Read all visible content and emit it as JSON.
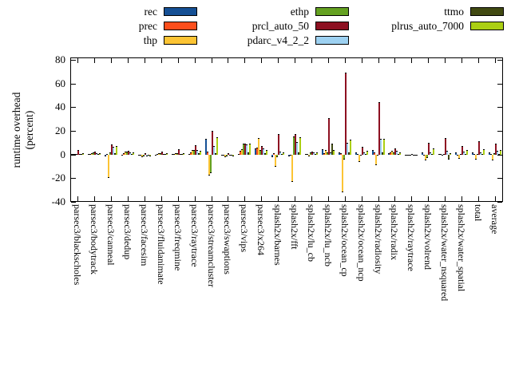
{
  "chart_data": {
    "type": "bar",
    "title": "",
    "xlabel": "",
    "ylabel": "runtime overhead (percent)",
    "ylabel_lines": [
      "runtime overhead",
      "(percent)"
    ],
    "ylim": [
      -40,
      80
    ],
    "yticks": [
      -40,
      -20,
      0,
      20,
      40,
      60,
      80
    ],
    "grid": false,
    "legend_position": "top, 3 columns, boxed swatches",
    "categories": [
      "parsec3/blackscholes",
      "parsec3/bodytrack",
      "parsec3/canneal",
      "parsec3/dedup",
      "parsec3/facesim",
      "parsec3/fluidanimate",
      "parsec3/freqmine",
      "parsec3/raytrace",
      "parsec3/streamcluster",
      "parsec3/swaptions",
      "parsec3/vips",
      "parsec3/x264",
      "splash2x/barnes",
      "splash2x/fft",
      "splash2x/lu_cb",
      "splash2x/lu_ncb",
      "splash2x/ocean_cp",
      "splash2x/ocean_ncp",
      "splash2x/radiosity",
      "splash2x/radix",
      "splash2x/raytrace",
      "splash2x/volrend",
      "splash2x/water_nsquared",
      "splash2x/water_spatial",
      "total",
      "average"
    ],
    "series": [
      {
        "name": "rec",
        "color": "#155095",
        "values": [
          0.3,
          0.4,
          -1.5,
          -0.5,
          -0.4,
          -0.3,
          0.3,
          0.6,
          13.0,
          -0.5,
          0.5,
          5.0,
          -2.0,
          -1.5,
          0.5,
          4.3,
          2.0,
          2.0,
          4.0,
          1.0,
          -0.5,
          1.5,
          0.5,
          2.0,
          2.0,
          1.5
        ]
      },
      {
        "name": "prec",
        "color": "#fc4e1c",
        "values": [
          0.4,
          0.6,
          0.8,
          1.0,
          -0.6,
          0.4,
          0.5,
          1.5,
          2.2,
          -1.2,
          3.0,
          6.0,
          1.0,
          -1.0,
          0.5,
          1.0,
          1.0,
          0.5,
          2.0,
          1.5,
          -0.5,
          -1.0,
          0.5,
          -1.0,
          0.5,
          0.8
        ]
      },
      {
        "name": "thp",
        "color": "#fcc434",
        "values": [
          0.8,
          1.3,
          -20.0,
          2.2,
          -2.0,
          1.0,
          1.2,
          4.0,
          -17.5,
          -2.4,
          4.5,
          14.0,
          -10.5,
          -23.0,
          -1.5,
          3.9,
          -32.0,
          -6.0,
          -9.0,
          3.0,
          -1.0,
          -5.0,
          -1.0,
          -3.5,
          -4.0,
          -5.0
        ]
      },
      {
        "name": "ethp",
        "color": "#64a121",
        "values": [
          0.6,
          1.5,
          1.5,
          2.8,
          -1.8,
          1.2,
          1.0,
          3.8,
          -16.0,
          -1.5,
          9.5,
          4.0,
          -2.0,
          15.5,
          1.5,
          1.5,
          -4.0,
          -1.0,
          -1.0,
          2.0,
          -0.8,
          -3.0,
          0.5,
          0.5,
          0.5,
          1.0
        ]
      },
      {
        "name": "prcl_auto_50",
        "color": "#8d1021",
        "values": [
          4.0,
          2.6,
          8.5,
          3.2,
          1.2,
          2.2,
          4.2,
          8.2,
          20.0,
          1.0,
          9.0,
          7.0,
          17.0,
          17.0,
          2.5,
          30.5,
          69.0,
          6.6,
          44.0,
          5.0,
          0.5,
          10.0,
          14.0,
          7.5,
          11.5,
          9.5
        ]
      },
      {
        "name": "pdarc_v4_2_2",
        "color": "#9dd1f1",
        "values": [
          0.5,
          1.0,
          6.5,
          1.5,
          -1.5,
          0.6,
          0.8,
          3.9,
          7.4,
          -1.2,
          8.6,
          5.0,
          2.5,
          10.5,
          2.0,
          2.0,
          10.0,
          2.0,
          13.0,
          3.0,
          -0.5,
          2.0,
          3.0,
          2.5,
          2.0,
          3.0
        ]
      },
      {
        "name": "ttmo",
        "color": "#414a12",
        "values": [
          0.3,
          0.5,
          1.0,
          0.8,
          -0.5,
          0.4,
          0.5,
          1.0,
          1.0,
          -0.6,
          1.5,
          1.0,
          0.5,
          2.0,
          0.5,
          8.9,
          2.0,
          0.5,
          1.5,
          0.5,
          -0.3,
          0.5,
          -4.0,
          0.5,
          0.5,
          0.8
        ]
      },
      {
        "name": "plrus_auto_7000",
        "color": "#abcf13",
        "values": [
          0.9,
          1.4,
          7.5,
          1.8,
          -1.6,
          1.0,
          1.2,
          3.0,
          14.8,
          -1.4,
          9.5,
          4.0,
          2.0,
          14.5,
          1.5,
          4.0,
          12.7,
          3.0,
          13.0,
          2.0,
          -0.5,
          5.0,
          1.0,
          4.0,
          4.5,
          4.0
        ]
      }
    ]
  },
  "legend": {
    "columns": [
      [
        "rec",
        "prec",
        "thp"
      ],
      [
        "ethp",
        "prcl_auto_50",
        "pdarc_v4_2_2"
      ],
      [
        "ttmo",
        "plrus_auto_7000"
      ]
    ]
  }
}
